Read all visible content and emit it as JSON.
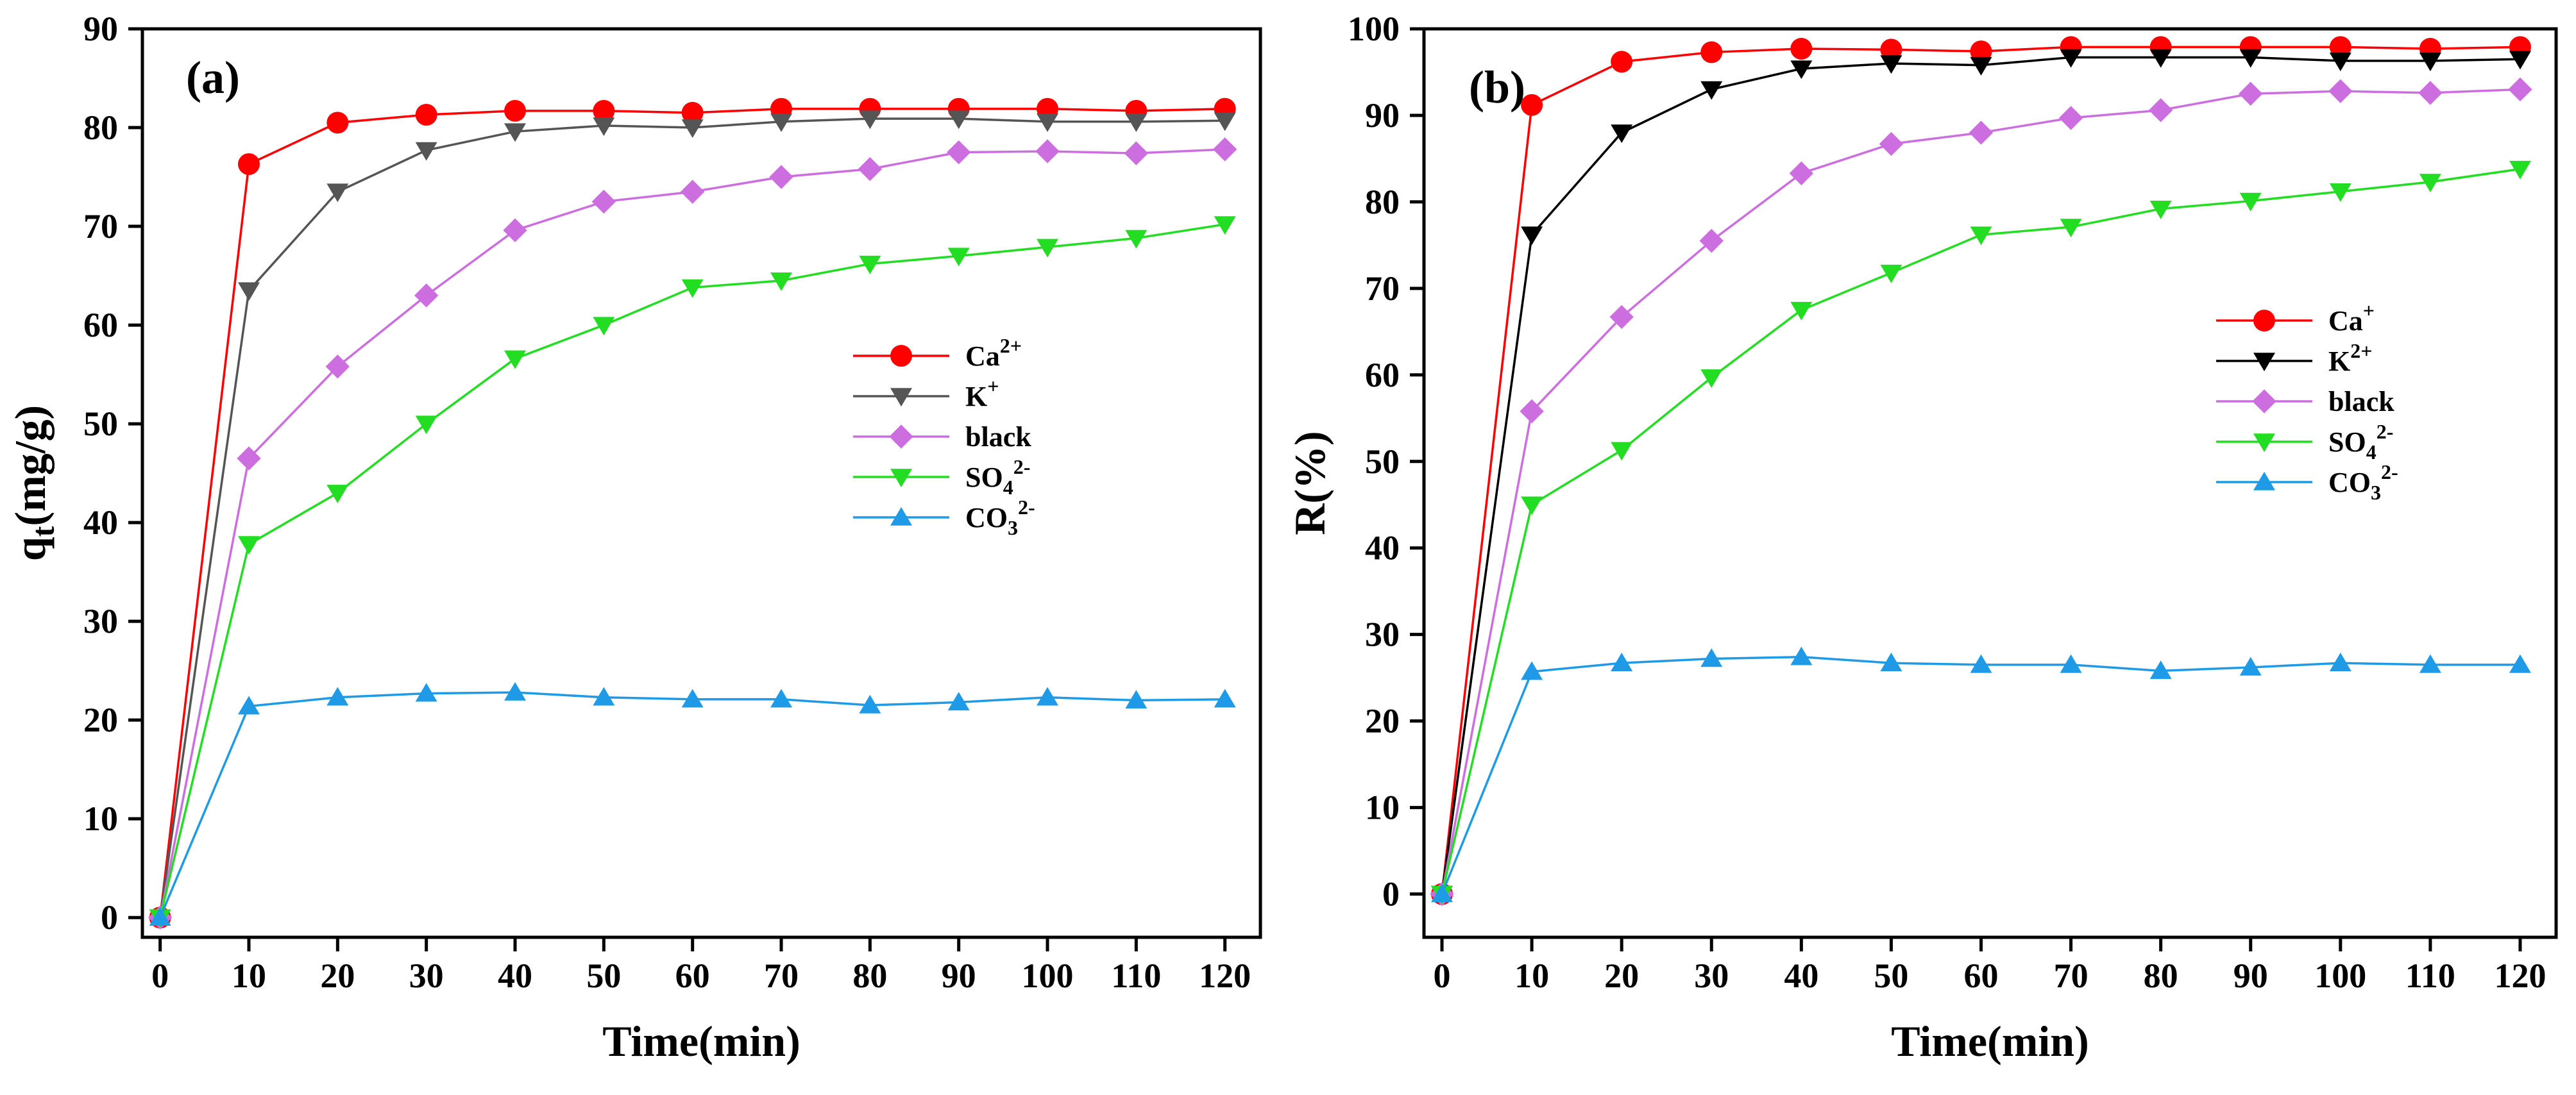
{
  "colors": {
    "Ca2": "#ff0000",
    "K": "#555555",
    "black": "#cc6ee0",
    "SO4": "#22dd22",
    "CO3": "#1e9ae6",
    "Ca_b": "#ff0000",
    "K_b": "#000000",
    "axis": "#000000"
  },
  "chart_data": [
    {
      "type": "line",
      "panel_label": "(a)",
      "xlabel": "Time(min)",
      "ylabel": "qt(mg/g)",
      "ylabel_main": "q",
      "ylabel_sub": "t",
      "ylabel_rest": "(mg/g)",
      "xlim": [
        -2,
        124
      ],
      "ylim": [
        -2,
        90
      ],
      "xticks": [
        0,
        10,
        20,
        30,
        40,
        50,
        60,
        70,
        80,
        90,
        100,
        110,
        120
      ],
      "yticks": [
        0,
        10,
        20,
        30,
        40,
        50,
        60,
        70,
        80,
        90
      ],
      "legend_position": "center-right",
      "x": [
        0,
        10,
        20,
        30,
        40,
        50,
        60,
        70,
        80,
        90,
        100,
        110,
        120
      ],
      "series": [
        {
          "name": "Ca2+",
          "label_main": "Ca",
          "label_sup": "2+",
          "label_sub": "",
          "marker": "circle",
          "color_key": "Ca2",
          "values": [
            0,
            76.3,
            80.5,
            81.3,
            81.7,
            81.7,
            81.5,
            81.9,
            81.9,
            81.9,
            81.9,
            81.7,
            81.9
          ]
        },
        {
          "name": "K+",
          "label_main": "K",
          "label_sup": "+",
          "label_sub": "",
          "marker": "triangle-down",
          "color_key": "K",
          "values": [
            0,
            63.5,
            73.5,
            77.7,
            79.6,
            80.2,
            80.0,
            80.6,
            80.9,
            80.9,
            80.6,
            80.6,
            80.7
          ]
        },
        {
          "name": "black",
          "label_main": "black",
          "label_sup": "",
          "label_sub": "",
          "marker": "diamond",
          "color_key": "black",
          "values": [
            0,
            46.5,
            55.8,
            63.0,
            69.6,
            72.5,
            73.5,
            75.0,
            75.8,
            77.5,
            77.6,
            77.4,
            77.8
          ]
        },
        {
          "name": "SO42-",
          "label_main": "SO",
          "label_sup": "2-",
          "label_sub": "4",
          "marker": "triangle-down",
          "color_key": "SO4",
          "values": [
            0,
            37.8,
            43.0,
            50.0,
            56.6,
            60.0,
            63.8,
            64.5,
            66.2,
            67.0,
            67.9,
            68.8,
            70.2
          ]
        },
        {
          "name": "CO32-",
          "label_main": "CO",
          "label_sup": "2-",
          "label_sub": "3",
          "marker": "triangle-up",
          "color_key": "CO3",
          "values": [
            0,
            21.4,
            22.3,
            22.7,
            22.8,
            22.3,
            22.1,
            22.1,
            21.5,
            21.8,
            22.3,
            22.0,
            22.1
          ]
        }
      ]
    },
    {
      "type": "line",
      "panel_label": "(b)",
      "xlabel": "Time(min)",
      "ylabel": "R(%)",
      "ylabel_main": "R(%)",
      "ylabel_sub": "",
      "ylabel_rest": "",
      "xlim": [
        -2,
        124
      ],
      "ylim": [
        -5,
        100
      ],
      "xticks": [
        0,
        10,
        20,
        30,
        40,
        50,
        60,
        70,
        80,
        90,
        100,
        110,
        120
      ],
      "yticks": [
        0,
        10,
        20,
        30,
        40,
        50,
        60,
        70,
        80,
        90,
        100
      ],
      "legend_position": "center-right",
      "x": [
        0,
        10,
        20,
        30,
        40,
        50,
        60,
        70,
        80,
        90,
        100,
        110,
        120
      ],
      "series": [
        {
          "name": "Ca+",
          "label_main": "Ca",
          "label_sup": "+",
          "label_sub": "",
          "marker": "circle",
          "color_key": "Ca_b",
          "values": [
            0,
            91.2,
            96.2,
            97.3,
            97.7,
            97.6,
            97.4,
            97.9,
            97.9,
            97.9,
            97.9,
            97.7,
            97.9
          ]
        },
        {
          "name": "K2+",
          "label_main": "K",
          "label_sup": "2+",
          "label_sub": "",
          "marker": "triangle-down",
          "color_key": "K_b",
          "values": [
            0,
            76.2,
            88.0,
            93.0,
            95.4,
            96.0,
            95.8,
            96.7,
            96.7,
            96.7,
            96.3,
            96.3,
            96.5
          ]
        },
        {
          "name": "black",
          "label_main": "black",
          "label_sup": "",
          "label_sub": "",
          "marker": "diamond",
          "color_key": "black",
          "values": [
            0,
            55.8,
            66.7,
            75.5,
            83.3,
            86.7,
            88.0,
            89.7,
            90.6,
            92.5,
            92.8,
            92.6,
            93.0
          ]
        },
        {
          "name": "SO42-",
          "label_main": "SO",
          "label_sup": "2-",
          "label_sub": "4",
          "marker": "triangle-down",
          "color_key": "SO4",
          "values": [
            0,
            45.0,
            51.3,
            59.7,
            67.5,
            71.8,
            76.2,
            77.1,
            79.2,
            80.1,
            81.2,
            82.3,
            83.8
          ]
        },
        {
          "name": "CO32-",
          "label_main": "CO",
          "label_sup": "2-",
          "label_sub": "3",
          "marker": "triangle-up",
          "color_key": "CO3",
          "values": [
            0,
            25.7,
            26.7,
            27.2,
            27.4,
            26.7,
            26.5,
            26.5,
            25.8,
            26.2,
            26.7,
            26.5,
            26.5
          ]
        }
      ]
    }
  ]
}
